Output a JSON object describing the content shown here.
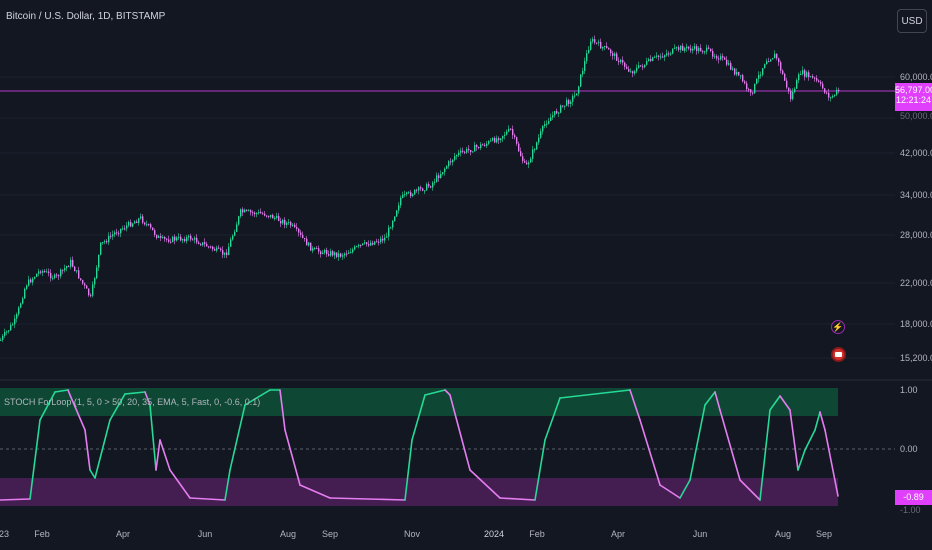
{
  "header": {
    "symbol_title": "Bitcoin / U.S. Dollar, 1D, BITSTAMP"
  },
  "toolbar": {
    "currency": "USD"
  },
  "indicator": {
    "title": "STOCH ForLoop (1, 5, 0 > 50, 20, 35, EMA, 5, Fast, 0, -0.6, 0.1)",
    "value_label": "-0.89",
    "y_ticks": [
      "1.00",
      "0.00",
      "-1.00"
    ]
  },
  "price_axis": {
    "labels": [
      "60,000.00",
      "42,000.00",
      "34,000.00",
      "28,000.00",
      "22,000.00",
      "18,000.00",
      "15,200.00"
    ],
    "current_price": "56,797.00",
    "countdown": "12:21:24",
    "hidden_label": "50,000.00"
  },
  "time_axis": {
    "labels": [
      "23",
      "Feb",
      "Apr",
      "Jun",
      "Aug",
      "Sep",
      "Nov",
      "2024",
      "Feb",
      "Apr",
      "Jun",
      "Aug",
      "Sep"
    ]
  },
  "icons": [
    "lightning-icon",
    "flag-icon"
  ],
  "colors": {
    "bull": "#26d996",
    "bear": "#e57cf0",
    "price_line": "#e040fb",
    "bg": "#131722"
  }
}
